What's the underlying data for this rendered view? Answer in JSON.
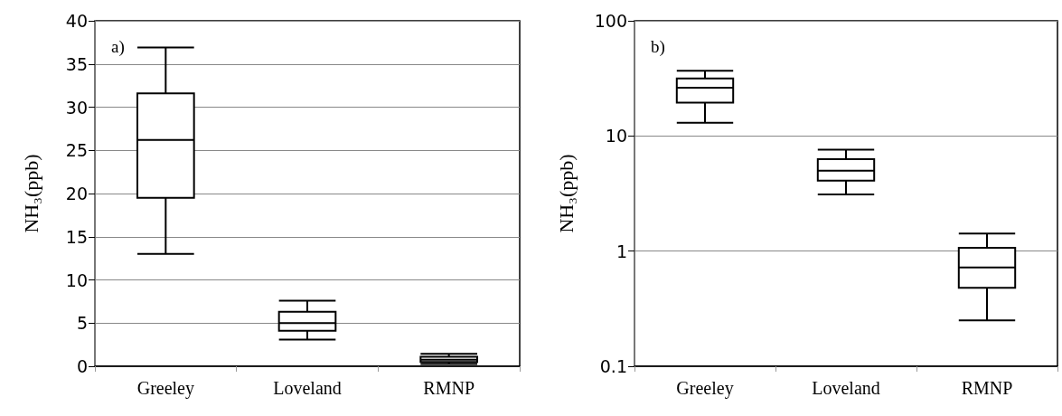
{
  "chart_data": [
    {
      "type": "box",
      "annotations": [
        "a)"
      ],
      "ylabel": "NH₃(ppb)",
      "categories": [
        "Greeley",
        "Loveland",
        "RMNP"
      ],
      "series": [
        {
          "color": "#000000",
          "boxes": [
            {
              "low": 13,
              "q1": 19.5,
              "median": 26.2,
              "q3": 31.6,
              "high": 36.9
            },
            {
              "low": 3.1,
              "q1": 4.1,
              "median": 5.0,
              "q3": 6.3,
              "high": 7.6
            },
            {
              "low": 0.25,
              "q1": 0.5,
              "median": 0.75,
              "q3": 1.1,
              "high": 1.45
            }
          ]
        }
      ],
      "ylim": [
        0,
        40
      ],
      "yticks": [
        0,
        5,
        10,
        15,
        20,
        25,
        30,
        35,
        40
      ],
      "grid": "y"
    },
    {
      "type": "box",
      "annotations": [
        "b)"
      ],
      "ylabel": "NH₃(ppb)",
      "categories": [
        "Greeley",
        "Loveland",
        "RMNP"
      ],
      "series": [
        {
          "color": "#000000",
          "boxes": [
            {
              "low": 13,
              "q1": 19.5,
              "median": 26.2,
              "q3": 31.6,
              "high": 36.9
            },
            {
              "low": 3.1,
              "q1": 4.1,
              "median": 5.0,
              "q3": 6.3,
              "high": 7.6
            },
            {
              "low": 0.25,
              "q1": 0.48,
              "median": 0.72,
              "q3": 1.07,
              "high": 1.42
            }
          ]
        }
      ],
      "ylim": [
        0.1,
        100
      ],
      "yticks": [
        0.1,
        1,
        10,
        100
      ],
      "log": true,
      "grid": "y"
    }
  ]
}
